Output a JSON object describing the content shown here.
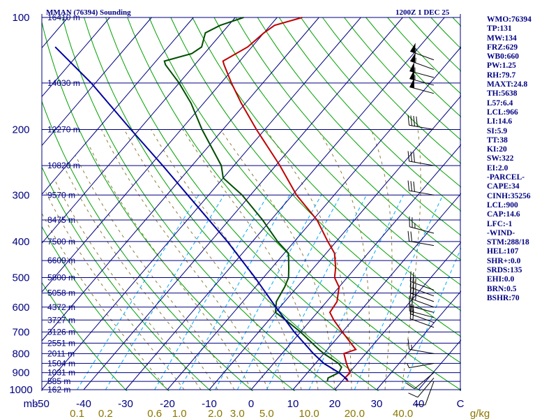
{
  "header": {
    "station": "MMAN (76394) Sounding",
    "time": "1200Z  1 DEC 25"
  },
  "indices": [
    "WMO:76394",
    "TP:131",
    "MW:134",
    "FRZ:629",
    "WB0:660",
    "PW:1.25",
    "RH:79.7",
    "MAXT:24.8",
    "TH:5638",
    "L57:6.4",
    "LCL:966",
    "LI:14.6",
    "SI:5.9",
    "TT:38",
    "KI:20",
    "SW:322",
    "EI:2.0",
    "-PARCEL-",
    "CAPE:34",
    "CINH:35256",
    "LCL:900",
    "CAP:14.6",
    "LFC:-1",
    "-WIND-",
    "STM:288/18",
    "HEL:107",
    "SHR+:0.0",
    "SRDS:135",
    "EHI:0.0",
    "BRN:0.5",
    "BSHR:70"
  ],
  "colors": {
    "isobar": "#000080",
    "isotherm": "#000080",
    "dry_adiabat": "#00a000",
    "moist_adiabat": "#8b7d3a",
    "mixing_ratio": "#00aaff",
    "temperature": "#c00000",
    "dewpoint": "#004d00",
    "parcel": "#0000a0",
    "wind": "#000000"
  },
  "chart_data": {
    "type": "line",
    "diagram": "skew-t log-p",
    "y_unit": "mb",
    "x_unit": "C",
    "mixing_ratio_unit": "g/kg",
    "ylim": [
      1000,
      100
    ],
    "xlim": [
      -50,
      50
    ],
    "pressure_ticks": [
      100,
      200,
      300,
      400,
      500,
      600,
      700,
      800,
      900,
      1000
    ],
    "temperature_ticks": [
      -50,
      -40,
      -30,
      -20,
      -10,
      0,
      10,
      20,
      30,
      40,
      50
    ],
    "temperature_tick_labels": [
      "-50",
      "-40",
      "-30",
      "-20",
      "-10",
      "0",
      "10",
      "20",
      "30",
      "40",
      "C"
    ],
    "mixing_ratio_ticks": [
      0.1,
      0.2,
      0.6,
      1.0,
      2.0,
      3.0,
      5.0,
      10.0,
      20.0,
      40.0
    ],
    "mixing_ratio_tick_labels": [
      "0.1",
      "0.2",
      "0.6",
      "1.0",
      "2.0",
      "3.0",
      "5.0",
      "10.0",
      "20.0",
      "40.0"
    ],
    "height_labels": [
      {
        "p": 100,
        "label": "16410 m"
      },
      {
        "p": 150,
        "label": "14030 m"
      },
      {
        "p": 200,
        "label": "12270 m"
      },
      {
        "p": 250,
        "label": "10820 m"
      },
      {
        "p": 300,
        "label": "9570 m"
      },
      {
        "p": 350,
        "label": "8475 m"
      },
      {
        "p": 400,
        "label": "7500 m"
      },
      {
        "p": 450,
        "label": "6609 m"
      },
      {
        "p": 500,
        "label": "5800 m"
      },
      {
        "p": 550,
        "label": "5058 m"
      },
      {
        "p": 600,
        "label": "4372 m"
      },
      {
        "p": 650,
        "label": "3727 m"
      },
      {
        "p": 700,
        "label": "3126 m"
      },
      {
        "p": 750,
        "label": "2551 m"
      },
      {
        "p": 800,
        "label": "2011 m"
      },
      {
        "p": 850,
        "label": "1504 m"
      },
      {
        "p": 900,
        "label": "1031 m"
      },
      {
        "p": 950,
        "label": "585 m"
      },
      {
        "p": 1000,
        "label": "162 m"
      }
    ],
    "series": [
      {
        "key": "temperature",
        "points": [
          {
            "p": 950,
            "t": 21.5
          },
          {
            "p": 930,
            "t": 20.0
          },
          {
            "p": 900,
            "t": 20.2
          },
          {
            "p": 870,
            "t": 18.5
          },
          {
            "p": 850,
            "t": 17.4
          },
          {
            "p": 800,
            "t": 14.8
          },
          {
            "p": 780,
            "t": 16.8
          },
          {
            "p": 700,
            "t": 10.0
          },
          {
            "p": 650,
            "t": 5.5
          },
          {
            "p": 620,
            "t": 3.0
          },
          {
            "p": 580,
            "t": 2.5
          },
          {
            "p": 530,
            "t": 0.0
          },
          {
            "p": 500,
            "t": -3.0
          },
          {
            "p": 470,
            "t": -4.8
          },
          {
            "p": 430,
            "t": -8.0
          },
          {
            "p": 400,
            "t": -12.0
          },
          {
            "p": 350,
            "t": -19.0
          },
          {
            "p": 300,
            "t": -29.0
          },
          {
            "p": 250,
            "t": -39.0
          },
          {
            "p": 200,
            "t": -52.0
          },
          {
            "p": 170,
            "t": -61.0
          },
          {
            "p": 150,
            "t": -67.5
          },
          {
            "p": 134,
            "t": -73.0
          },
          {
            "p": 131,
            "t": -74.0
          },
          {
            "p": 120,
            "t": -71.0
          },
          {
            "p": 110,
            "t": -70.0
          },
          {
            "p": 105,
            "t": -69.0
          },
          {
            "p": 100,
            "t": -64.0
          }
        ]
      },
      {
        "key": "dewpoint",
        "points": [
          {
            "p": 950,
            "t": 16.5
          },
          {
            "p": 930,
            "t": 16.0
          },
          {
            "p": 900,
            "t": 17.5
          },
          {
            "p": 870,
            "t": 17.0
          },
          {
            "p": 850,
            "t": 15.5
          },
          {
            "p": 800,
            "t": 10.0
          },
          {
            "p": 780,
            "t": 8.0
          },
          {
            "p": 700,
            "t": 0.0
          },
          {
            "p": 650,
            "t": -6.0
          },
          {
            "p": 620,
            "t": -10.0
          },
          {
            "p": 580,
            "t": -12.0
          },
          {
            "p": 530,
            "t": -13.0
          },
          {
            "p": 500,
            "t": -14.0
          },
          {
            "p": 470,
            "t": -16.0
          },
          {
            "p": 430,
            "t": -19.0
          },
          {
            "p": 400,
            "t": -24.0
          },
          {
            "p": 350,
            "t": -32.0
          },
          {
            "p": 300,
            "t": -42.0
          },
          {
            "p": 270,
            "t": -50.0
          },
          {
            "p": 250,
            "t": -53.0
          },
          {
            "p": 200,
            "t": -65.0
          },
          {
            "p": 170,
            "t": -73.0
          },
          {
            "p": 150,
            "t": -80.0
          },
          {
            "p": 134,
            "t": -87.0
          },
          {
            "p": 131,
            "t": -88.0
          },
          {
            "p": 125,
            "t": -83.0
          },
          {
            "p": 120,
            "t": -82.0
          },
          {
            "p": 110,
            "t": -84.0
          },
          {
            "p": 105,
            "t": -82.0
          },
          {
            "p": 100,
            "t": -78.0
          }
        ]
      },
      {
        "key": "parcel",
        "points": [
          {
            "p": 940,
            "t": 21.0
          },
          {
            "p": 900,
            "t": 17.5
          },
          {
            "p": 850,
            "t": 12.0
          },
          {
            "p": 800,
            "t": 7.5
          },
          {
            "p": 700,
            "t": -1.5
          },
          {
            "p": 600,
            "t": -11.0
          },
          {
            "p": 500,
            "t": -22.0
          },
          {
            "p": 400,
            "t": -36.0
          },
          {
            "p": 300,
            "t": -55.0
          },
          {
            "p": 250,
            "t": -67.0
          },
          {
            "p": 200,
            "t": -82.0
          },
          {
            "p": 150,
            "t": -101.0
          },
          {
            "p": 120,
            "t": -117.0
          }
        ]
      }
    ],
    "wind_barbs": [
      {
        "p": 130,
        "dir": 290,
        "speed": 55
      },
      {
        "p": 138,
        "dir": 290,
        "speed": 55
      },
      {
        "p": 145,
        "dir": 285,
        "speed": 55
      },
      {
        "p": 152,
        "dir": 285,
        "speed": 55
      },
      {
        "p": 160,
        "dir": 285,
        "speed": 50
      },
      {
        "p": 200,
        "dir": 280,
        "speed": 40
      },
      {
        "p": 250,
        "dir": 280,
        "speed": 30
      },
      {
        "p": 300,
        "dir": 280,
        "speed": 30
      },
      {
        "p": 380,
        "dir": 285,
        "speed": 25
      },
      {
        "p": 410,
        "dir": 280,
        "speed": 20
      },
      {
        "p": 540,
        "dir": 290,
        "speed": 25
      },
      {
        "p": 560,
        "dir": 290,
        "speed": 25
      },
      {
        "p": 580,
        "dir": 290,
        "speed": 25
      },
      {
        "p": 600,
        "dir": 290,
        "speed": 25
      },
      {
        "p": 620,
        "dir": 285,
        "speed": 20
      },
      {
        "p": 640,
        "dir": 285,
        "speed": 20
      },
      {
        "p": 660,
        "dir": 290,
        "speed": 20
      },
      {
        "p": 680,
        "dir": 290,
        "speed": 20
      },
      {
        "p": 800,
        "dir": 280,
        "speed": 15
      },
      {
        "p": 850,
        "dir": 260,
        "speed": 5
      },
      {
        "p": 900,
        "dir": 230,
        "speed": 10
      },
      {
        "p": 930,
        "dir": 220,
        "speed": 10
      },
      {
        "p": 950,
        "dir": 200,
        "speed": 10
      }
    ]
  }
}
